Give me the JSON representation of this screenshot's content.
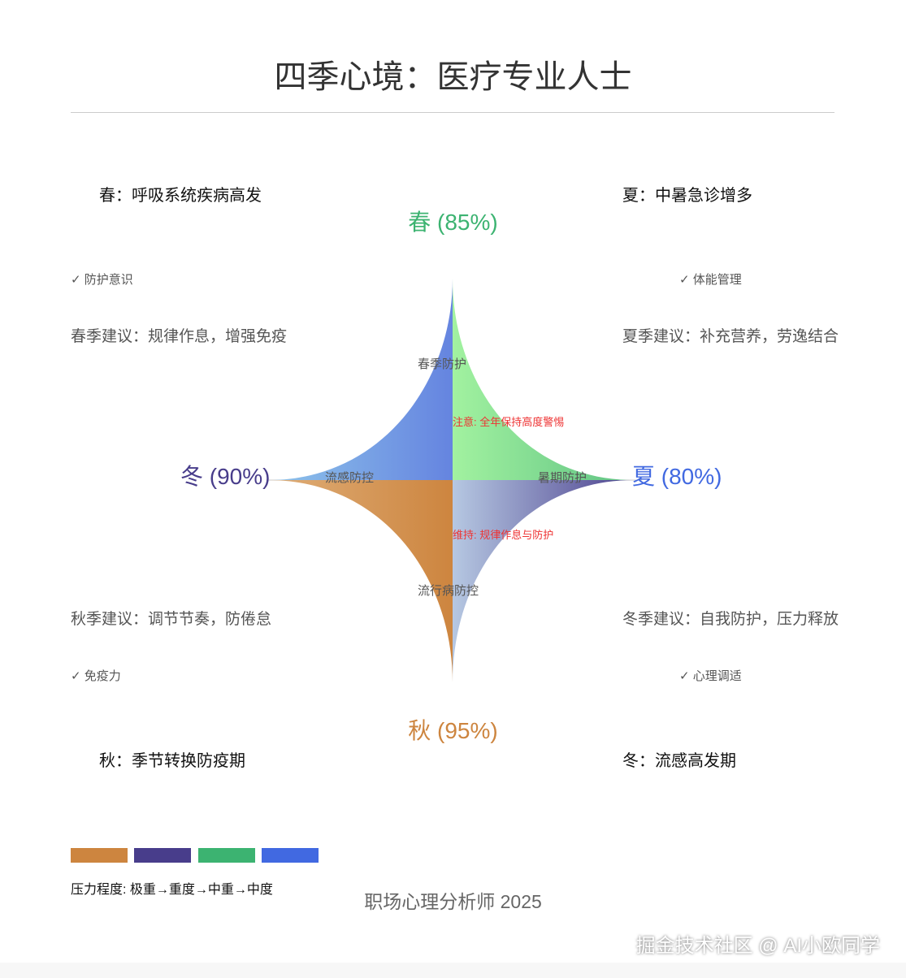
{
  "title": "四季心境：医疗专业人士",
  "seasons": {
    "spring": {
      "heading": "春：呼吸系统疾病高发",
      "label": "春 (85%)",
      "check": "✓ 防护意识",
      "advice": "春季建议：规律作息，增强免疫",
      "inner": "春季防护",
      "color": "#3cb371"
    },
    "summer": {
      "heading": "夏：中暑急诊增多",
      "label": "夏 (80%)",
      "check": "✓ 体能管理",
      "advice": "夏季建议：补充营养，劳逸结合",
      "inner": "暑期防护",
      "color": "#4169e1"
    },
    "autumn": {
      "heading": "秋：季节转换防疫期",
      "label": "秋 (95%)",
      "check": "✓ 免疫力",
      "advice": "秋季建议：调节节奏，防倦怠",
      "inner": "流行病防控",
      "color": "#cd853f"
    },
    "winter": {
      "heading": "冬：流感高发期",
      "label": "冬 (90%)",
      "check": "✓ 心理调适",
      "advice": "冬季建议：自我防护，压力释放",
      "inner": "流感防控",
      "color": "#483d8b"
    }
  },
  "notes": {
    "top": "注意: 全年保持高度警惕",
    "bottom": "维持: 规律作息与防护"
  },
  "legend": {
    "colors": [
      "#cd853f",
      "#483d8b",
      "#3cb371",
      "#4169e1"
    ],
    "text": "压力程度: 极重→重度→中重→中度"
  },
  "footer": "职场心理分析师 2025",
  "watermark": "掘金技术社区 @ AI小欧同学"
}
